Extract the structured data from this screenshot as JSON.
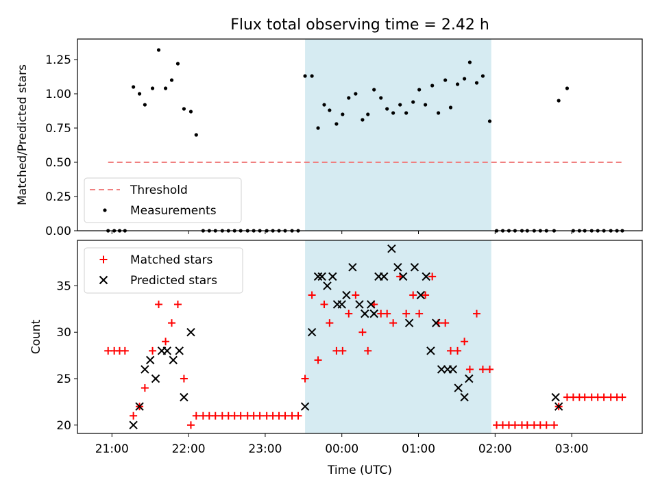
{
  "title": "Flux total observing time = 2.42 h",
  "colors": {
    "threshold": "#f08080",
    "matched": "#ff0000",
    "predicted": "#000000",
    "measurement": "#000000",
    "span": "#add8e6"
  },
  "chart_data": [
    {
      "type": "scatter",
      "panel": "top",
      "ylabel": "Matched/Predicted stars",
      "ylim": [
        0,
        1.4
      ],
      "yticks": [
        0.0,
        0.25,
        0.5,
        0.75,
        1.0,
        1.25
      ],
      "ytick_labels": [
        "0.00",
        "0.25",
        "0.50",
        "0.75",
        "1.00",
        "1.25"
      ],
      "xlim_hours": [
        20.55,
        27.92
      ],
      "shaded_span_hours": [
        23.52,
        25.95
      ],
      "legend": {
        "position": "lower-left",
        "entries": [
          "Threshold",
          "Measurements"
        ]
      },
      "threshold": {
        "name": "Threshold",
        "value": 0.5,
        "x_range_hours": [
          20.95,
          27.65
        ]
      },
      "measurements": {
        "name": "Measurements",
        "x_hours": [
          20.95,
          21.03,
          21.1,
          21.17,
          21.28,
          21.36,
          21.43,
          21.53,
          21.61,
          21.7,
          21.78,
          21.86,
          21.94,
          22.03,
          22.1,
          22.19,
          22.27,
          22.35,
          22.44,
          22.52,
          22.6,
          22.68,
          22.77,
          22.85,
          22.93,
          23.02,
          23.1,
          23.18,
          23.26,
          23.35,
          23.43,
          23.52,
          23.61,
          23.69,
          23.77,
          23.84,
          23.93,
          24.01,
          24.09,
          24.18,
          24.27,
          24.34,
          24.42,
          24.51,
          24.59,
          24.67,
          24.76,
          24.84,
          24.93,
          25.01,
          25.09,
          25.18,
          25.26,
          25.35,
          25.42,
          25.51,
          25.6,
          25.67,
          25.76,
          25.84,
          25.93,
          26.02,
          26.1,
          26.18,
          26.26,
          26.35,
          26.42,
          26.51,
          26.59,
          26.67,
          26.77,
          26.83,
          26.94,
          27.02,
          27.1,
          27.17,
          27.26,
          27.34,
          27.42,
          27.51,
          27.59,
          27.66
        ],
        "y": [
          0.0,
          0.0,
          0.0,
          0.0,
          1.05,
          1.0,
          0.92,
          1.04,
          1.32,
          1.04,
          1.1,
          1.22,
          0.89,
          0.87,
          0.7,
          0.0,
          0.0,
          0.0,
          0.0,
          0.0,
          0.0,
          0.0,
          0.0,
          0.0,
          0.0,
          0.0,
          0.0,
          0.0,
          0.0,
          0.0,
          0.0,
          1.13,
          1.13,
          0.75,
          0.92,
          0.88,
          0.78,
          0.85,
          0.97,
          1.0,
          0.81,
          0.85,
          1.03,
          0.97,
          0.89,
          0.86,
          0.92,
          0.86,
          0.94,
          1.03,
          0.92,
          1.06,
          0.86,
          1.1,
          0.9,
          1.07,
          1.11,
          1.23,
          1.08,
          1.13,
          0.8,
          0.0,
          0.0,
          0.0,
          0.0,
          0.0,
          0.0,
          0.0,
          0.0,
          0.0,
          0.0,
          0.95,
          1.04,
          0.0,
          0.0,
          0.0,
          0.0,
          0.0,
          0.0,
          0.0,
          0.0,
          0.0
        ]
      }
    },
    {
      "type": "scatter",
      "panel": "bottom",
      "xlabel": "Time (UTC)",
      "ylabel": "Count",
      "ylim": [
        19.1,
        39.9
      ],
      "yticks": [
        20,
        25,
        30,
        35
      ],
      "ytick_labels": [
        "20",
        "25",
        "30",
        "35"
      ],
      "xlim_hours": [
        20.55,
        27.92
      ],
      "xticks_hours": [
        21,
        22,
        23,
        24,
        25,
        26,
        27
      ],
      "xtick_labels": [
        "21:00",
        "22:00",
        "23:00",
        "00:00",
        "01:00",
        "02:00",
        "03:00"
      ],
      "shaded_span_hours": [
        23.52,
        25.95
      ],
      "legend": {
        "position": "upper-left",
        "entries": [
          "Matched stars",
          "Predicted stars"
        ]
      },
      "series": [
        {
          "name": "Matched stars",
          "marker": "+",
          "x_hours": [
            20.95,
            21.03,
            21.1,
            21.17,
            21.28,
            21.36,
            21.43,
            21.53,
            21.61,
            21.7,
            21.78,
            21.86,
            21.94,
            22.03,
            22.1,
            22.19,
            22.27,
            22.35,
            22.44,
            22.52,
            22.6,
            22.68,
            22.77,
            22.85,
            22.93,
            23.02,
            23.1,
            23.18,
            23.26,
            23.35,
            23.43,
            23.52,
            23.61,
            23.69,
            23.77,
            23.84,
            23.93,
            24.01,
            24.09,
            24.18,
            24.27,
            24.34,
            24.42,
            24.51,
            24.59,
            24.67,
            24.76,
            24.84,
            24.93,
            25.01,
            25.09,
            25.18,
            25.26,
            25.35,
            25.42,
            25.51,
            25.6,
            25.67,
            25.76,
            25.84,
            25.93,
            26.02,
            26.1,
            26.18,
            26.26,
            26.35,
            26.42,
            26.51,
            26.59,
            26.67,
            26.77,
            26.83,
            26.94,
            27.02,
            27.1,
            27.17,
            27.26,
            27.34,
            27.42,
            27.51,
            27.59,
            27.66
          ],
          "y": [
            28,
            28,
            28,
            28,
            21,
            22,
            24,
            28,
            33,
            29,
            31,
            33,
            25,
            20,
            21,
            21,
            21,
            21,
            21,
            21,
            21,
            21,
            21,
            21,
            21,
            21,
            21,
            21,
            21,
            21,
            21,
            25,
            34,
            27,
            33,
            31,
            28,
            28,
            32,
            34,
            30,
            28,
            33,
            32,
            32,
            31,
            36,
            32,
            34,
            32,
            34,
            36,
            31,
            31,
            28,
            28,
            29,
            26,
            32,
            26,
            26,
            20,
            20,
            20,
            20,
            20,
            20,
            20,
            20,
            20,
            20,
            22,
            23,
            23,
            23,
            23,
            23,
            23,
            23,
            23,
            23,
            23
          ]
        },
        {
          "name": "Predicted stars",
          "marker": "x",
          "x_hours": [
            21.28,
            21.36,
            21.43,
            21.5,
            21.57,
            21.65,
            21.72,
            21.8,
            21.88,
            21.94,
            22.03,
            22.1,
            23.52,
            23.61,
            23.69,
            23.74,
            23.81,
            23.88,
            23.94,
            24.0,
            24.06,
            24.14,
            24.23,
            24.3,
            24.38,
            24.42,
            24.48,
            24.55,
            24.65,
            24.73,
            24.8,
            24.88,
            24.95,
            25.03,
            25.1,
            25.16,
            25.23,
            25.3,
            25.38,
            25.45,
            25.52,
            25.6,
            25.66,
            25.72,
            25.8,
            25.88,
            26.79,
            26.83
          ],
          "y": [
            20,
            22,
            26,
            27,
            25,
            28,
            28,
            27,
            28,
            23,
            30,
            null,
            22,
            30,
            36,
            36,
            35,
            36,
            33,
            33,
            34,
            37,
            33,
            32,
            33,
            32,
            36,
            36,
            39,
            37,
            36,
            31,
            37,
            34,
            36,
            28,
            31,
            26,
            26,
            26,
            24,
            23,
            25,
            null,
            null,
            null,
            23,
            22
          ]
        }
      ]
    }
  ]
}
